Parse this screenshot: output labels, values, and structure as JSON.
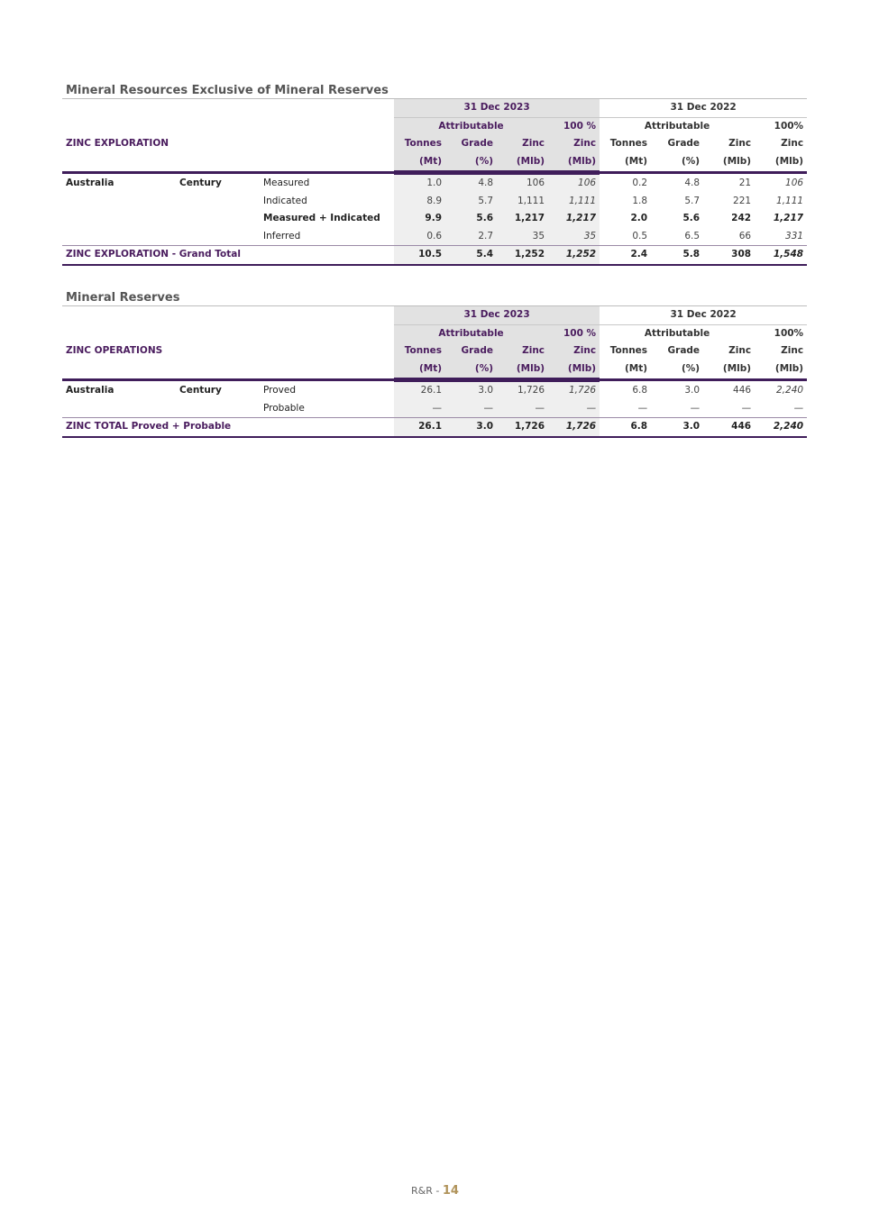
{
  "tables": [
    {
      "title": "Mineral Resources Exclusive of Mineral Reserves",
      "section_label": "ZINC EXPLORATION",
      "period_a": "31 Dec 2023",
      "attrib_a": "Attributable",
      "full_a": "100 %",
      "period_b": "31 Dec 2022",
      "attrib_b": "Attributable",
      "full_b": "100%",
      "columns": [
        {
          "name": "Tonnes",
          "unit": "(Mt)"
        },
        {
          "name": "Grade",
          "unit": "(%)"
        },
        {
          "name": "Zinc",
          "unit": "(Mlb)"
        },
        {
          "name": "Zinc",
          "unit": "(Mlb)"
        },
        {
          "name": "Tonnes",
          "unit": "(Mt)"
        },
        {
          "name": "Grade",
          "unit": "(%)"
        },
        {
          "name": "Zinc",
          "unit": "(Mlb)"
        },
        {
          "name": "Zinc",
          "unit": "(Mlb)"
        }
      ],
      "rows": [
        {
          "country": "Australia",
          "mine": "Century",
          "category": "Measured",
          "bold": false,
          "values": [
            "1.0",
            "4.8",
            "106",
            "106",
            "0.2",
            "4.8",
            "21",
            "106"
          ]
        },
        {
          "country": "",
          "mine": "",
          "category": "Indicated",
          "bold": false,
          "values": [
            "8.9",
            "5.7",
            "1,111",
            "1,111",
            "1.8",
            "5.7",
            "221",
            "1,111"
          ]
        },
        {
          "country": "",
          "mine": "",
          "category": "Measured + Indicated",
          "bold": true,
          "values": [
            "9.9",
            "5.6",
            "1,217",
            "1,217",
            "2.0",
            "5.6",
            "242",
            "1,217"
          ]
        },
        {
          "country": "",
          "mine": "",
          "category": "Inferred",
          "bold": false,
          "values": [
            "0.6",
            "2.7",
            "35",
            "35",
            "0.5",
            "6.5",
            "66",
            "331"
          ]
        }
      ],
      "total": {
        "label": "ZINC EXPLORATION - Grand Total",
        "values": [
          "10.5",
          "5.4",
          "1,252",
          "1,252",
          "2.4",
          "5.8",
          "308",
          "1,548"
        ]
      }
    },
    {
      "title": "Mineral Reserves",
      "section_label": "ZINC OPERATIONS",
      "period_a": "31 Dec 2023",
      "attrib_a": "Attributable",
      "full_a": "100 %",
      "period_b": "31 Dec 2022",
      "attrib_b": "Attributable",
      "full_b": "100%",
      "columns": [
        {
          "name": "Tonnes",
          "unit": "(Mt)"
        },
        {
          "name": "Grade",
          "unit": "(%)"
        },
        {
          "name": "Zinc",
          "unit": "(Mlb)"
        },
        {
          "name": "Zinc",
          "unit": "(Mlb)"
        },
        {
          "name": "Tonnes",
          "unit": "(Mt)"
        },
        {
          "name": "Grade",
          "unit": "(%)"
        },
        {
          "name": "Zinc",
          "unit": "(Mlb)"
        },
        {
          "name": "Zinc",
          "unit": "(Mlb)"
        }
      ],
      "rows": [
        {
          "country": "Australia",
          "mine": "Century",
          "category": "Proved",
          "bold": false,
          "values": [
            "26.1",
            "3.0",
            "1,726",
            "1,726",
            "6.8",
            "3.0",
            "446",
            "2,240"
          ]
        },
        {
          "country": "",
          "mine": "",
          "category": "Probable",
          "bold": false,
          "values": [
            "—",
            "—",
            "—",
            "—",
            "—",
            "—",
            "—",
            "—"
          ]
        }
      ],
      "total": {
        "label": "ZINC TOTAL Proved + Probable",
        "values": [
          "26.1",
          "3.0",
          "1,726",
          "1,726",
          "6.8",
          "3.0",
          "446",
          "2,240"
        ]
      }
    }
  ],
  "footer": {
    "prefix": "R&R - ",
    "page": "14"
  },
  "colors": {
    "accent": "#3f1d5a",
    "header_text": "#4a1c5e",
    "shade": "#efefef",
    "page_number": "#b0935a"
  }
}
